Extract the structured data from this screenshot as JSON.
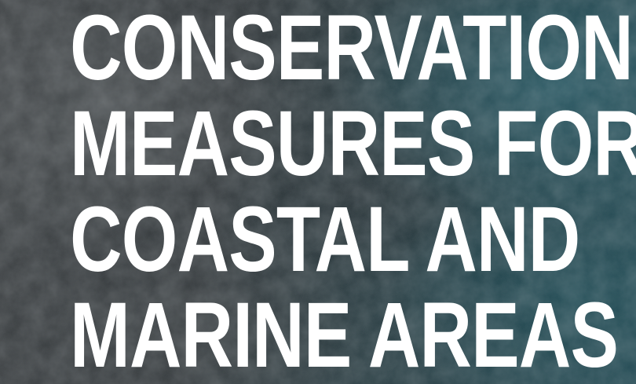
{
  "cover": {
    "title_lines": [
      "CONSERVATION",
      "MEASURES FOR",
      "COASTAL AND",
      "MARINE AREAS"
    ]
  }
}
